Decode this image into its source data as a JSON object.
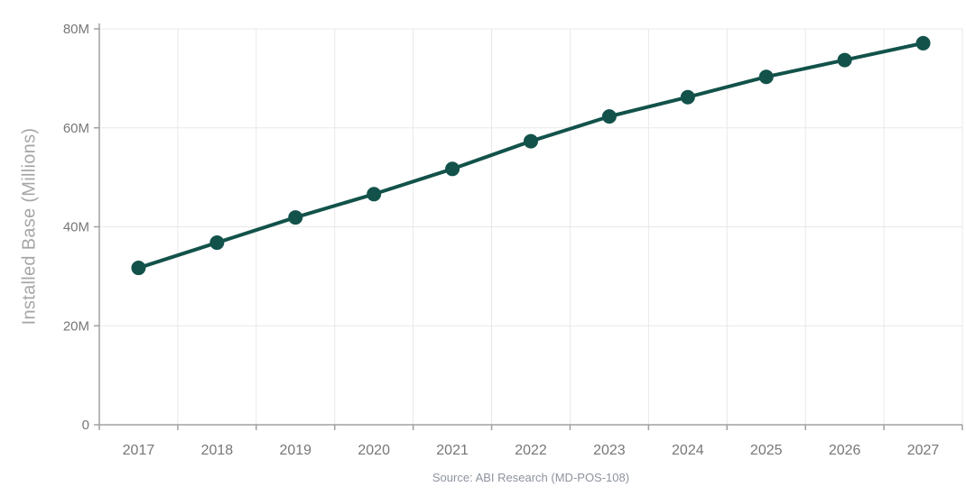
{
  "chart_data": {
    "type": "line",
    "title": "",
    "categories": [
      "2017",
      "2018",
      "2019",
      "2020",
      "2021",
      "2022",
      "2023",
      "2024",
      "2025",
      "2026",
      "2027"
    ],
    "series": [
      {
        "name": "Installed Base",
        "values": [
          31.7,
          36.8,
          41.9,
          46.6,
          51.7,
          57.3,
          62.3,
          66.2,
          70.3,
          73.7,
          77.1
        ]
      }
    ],
    "xlabel": "",
    "ylabel": "Installed Base (Millions)",
    "ylim": [
      0,
      80
    ],
    "y_tick_values": [
      0,
      20,
      40,
      60,
      80
    ],
    "y_tick_labels": [
      "0",
      "20M",
      "40M",
      "60M",
      "80M"
    ],
    "grid": true,
    "legend": false,
    "marker_style": "circle"
  },
  "source": {
    "text": "Source: ABI Research (MD-POS-108)"
  },
  "colors": {
    "line": "#12524a",
    "marker": "#12524a",
    "gridline": "#e8e8e8",
    "axis_line": "#a0a0a0",
    "tick_label": "#777777",
    "axis_title": "#a6a6a6",
    "source_text": "#8d939e",
    "background": "#ffffff"
  }
}
